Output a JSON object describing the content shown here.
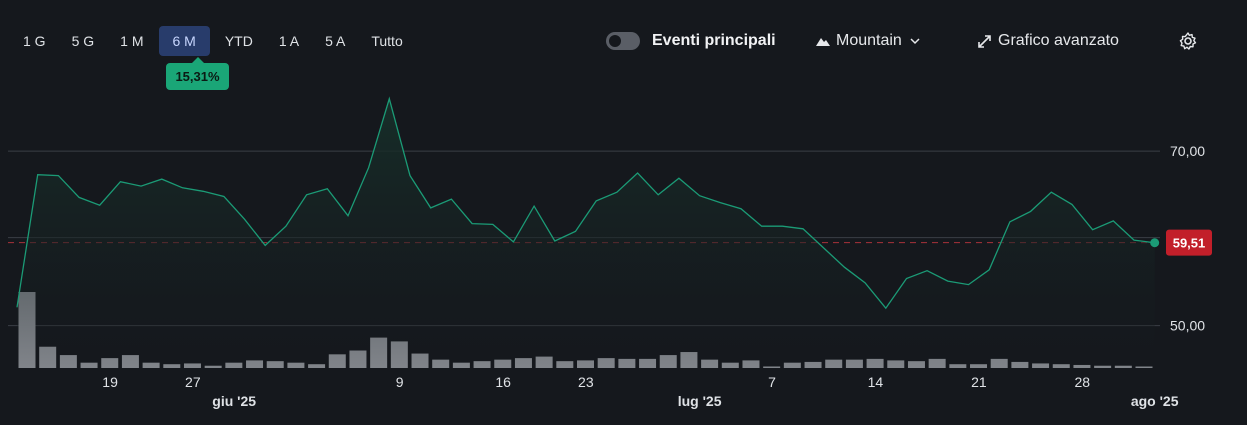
{
  "range_selector": {
    "buttons": [
      "1 G",
      "5 G",
      "1 M",
      "6 M",
      "YTD",
      "1 A",
      "5 A",
      "Tutto"
    ],
    "active_index": 3,
    "change_badge": "15,31%"
  },
  "toolbar": {
    "events_label": "Eventi principali",
    "events_toggle_on": false,
    "chart_type_label": "Mountain",
    "chart_type_icon": "mountain-icon",
    "advanced_label": "Grafico avanzato",
    "advanced_icon": "expand-arrows-icon",
    "settings_icon": "gear-icon"
  },
  "colors": {
    "line": "#1b9b76",
    "area_top": "#17302a",
    "volume": "#9b9fa5",
    "last_price_badge": "#c21f2a",
    "reference_line": "#a8323a",
    "active_tab": "#283c6b",
    "change_badge": "#1aa677"
  },
  "chart_data": {
    "type": "area",
    "title": "",
    "xlabel": "",
    "ylabel": "",
    "ylim": [
      45.14,
      76.44
    ],
    "y_ticks": [
      "50,00",
      "70,00"
    ],
    "y_tick_values": [
      50,
      70
    ],
    "last_price_label": "59,51",
    "last_price": 59.51,
    "reference_price": 59.51,
    "grid": true,
    "x_range": [
      0,
      108
    ],
    "x_tick_labels": [
      {
        "x": 9,
        "label": "19"
      },
      {
        "x": 17,
        "label": "27"
      },
      {
        "x": 21,
        "label": "giu '25",
        "bold": true
      },
      {
        "x": 37,
        "label": "9"
      },
      {
        "x": 47,
        "label": "16"
      },
      {
        "x": 55,
        "label": "23"
      },
      {
        "x": 66,
        "label": "lug '25",
        "bold": true
      },
      {
        "x": 73,
        "label": "7"
      },
      {
        "x": 83,
        "label": "14"
      },
      {
        "x": 93,
        "label": "21"
      },
      {
        "x": 103,
        "label": "28"
      },
      {
        "x": 110,
        "label": "ago '25",
        "bold": true
      }
    ],
    "series": [
      {
        "name": "",
        "x": [
          0,
          2,
          4,
          6,
          8,
          10,
          12,
          14,
          16,
          18,
          20,
          22,
          24,
          26,
          28,
          30,
          32,
          34,
          36,
          38,
          40,
          42,
          44,
          46,
          48,
          50,
          52,
          54,
          56,
          58,
          60,
          62,
          64,
          66,
          68,
          70,
          72,
          74,
          76,
          78,
          80,
          82,
          84,
          86,
          88,
          90,
          92,
          94,
          96,
          98,
          100,
          102,
          104,
          106,
          108,
          110
        ],
        "values": [
          52.1,
          67.3,
          67.2,
          64.7,
          63.8,
          66.5,
          66.0,
          66.8,
          65.8,
          65.4,
          64.8,
          62.2,
          59.2,
          61.4,
          65.0,
          65.7,
          62.6,
          68.1,
          76.0,
          67.2,
          63.5,
          64.5,
          61.7,
          61.6,
          59.6,
          63.7,
          59.7,
          60.8,
          64.3,
          65.3,
          67.5,
          65.0,
          66.9,
          64.9,
          64.1,
          63.4,
          61.4,
          61.4,
          61.1,
          58.9,
          56.7,
          54.9,
          52.0,
          55.4,
          56.3,
          55.1,
          54.7,
          56.4,
          61.9,
          63.1,
          65.3,
          63.9,
          61.0,
          62.0,
          59.8,
          59.5
        ]
      }
    ],
    "volume": {
      "x": [
        0,
        2,
        4,
        6,
        8,
        10,
        12,
        14,
        16,
        18,
        20,
        22,
        24,
        26,
        28,
        30,
        32,
        34,
        36,
        38,
        40,
        42,
        44,
        46,
        48,
        50,
        52,
        54,
        56,
        58,
        60,
        62,
        64,
        66,
        68,
        70,
        72,
        74,
        76,
        78,
        80,
        82,
        84,
        86,
        88,
        90,
        92,
        94,
        96,
        98,
        100,
        102,
        104,
        106,
        108
      ],
      "values": [
        100,
        28,
        17,
        7,
        13,
        17,
        7,
        5,
        6,
        3,
        7,
        10,
        9,
        7,
        5,
        18,
        23,
        40,
        35,
        19,
        11,
        7,
        9,
        11,
        13,
        15,
        9,
        10,
        13,
        12,
        12,
        17,
        21,
        11,
        7,
        10,
        2,
        7,
        8,
        11,
        11,
        12,
        10,
        9,
        12,
        5,
        5,
        12,
        8,
        6,
        5,
        4,
        3,
        3,
        0
      ]
    }
  }
}
